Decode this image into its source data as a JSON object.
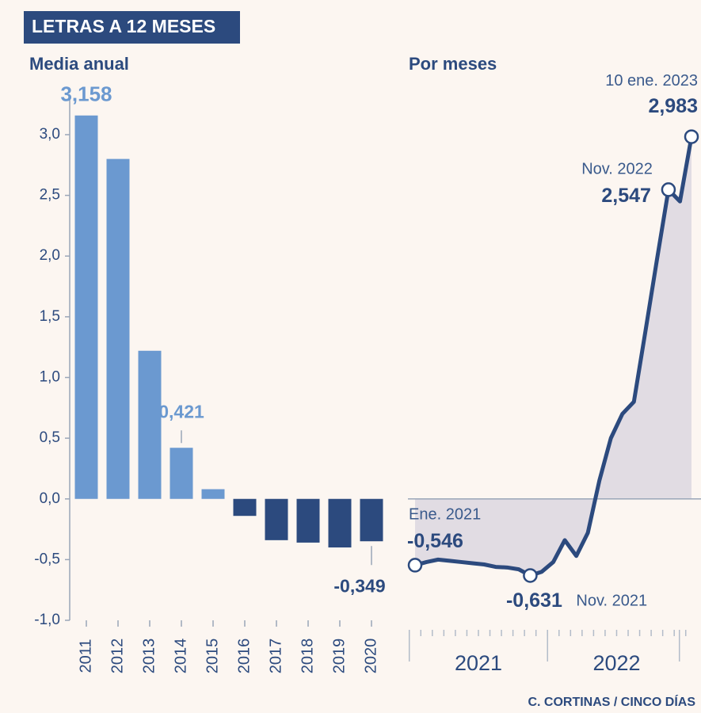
{
  "title": "LETRAS A 12 MESES",
  "source": "C. CORTINAS / CINCO DÍAS",
  "chart_data": [
    {
      "type": "bar",
      "subtitle": "Media anual",
      "categories": [
        "2011",
        "2012",
        "2013",
        "2014",
        "2015",
        "2016",
        "2017",
        "2018",
        "2019",
        "2020"
      ],
      "values": [
        3.158,
        2.8,
        1.22,
        0.421,
        0.08,
        -0.14,
        -0.34,
        -0.36,
        -0.4,
        -0.349
      ],
      "value_labels": [
        "3,158",
        null,
        null,
        "0,421",
        null,
        null,
        null,
        null,
        null,
        "-0,349"
      ],
      "color": "#6b99d0",
      "negative_color": "#2c4a7e",
      "ylim": [
        -1,
        3.3
      ],
      "yticks": [
        {
          "value": -1,
          "label": "-1,0"
        },
        {
          "value": -0.5,
          "label": "-0,5"
        },
        {
          "value": 0,
          "label": "0,0"
        },
        {
          "value": 0.5,
          "label": "0,5"
        },
        {
          "value": 1,
          "label": "1,0"
        },
        {
          "value": 1.5,
          "label": "1,5"
        },
        {
          "value": 2,
          "label": "2,0"
        },
        {
          "value": 2.5,
          "label": "2,5"
        },
        {
          "value": 3,
          "label": "3,0"
        }
      ]
    },
    {
      "type": "line",
      "subtitle": "Por meses",
      "categories": [
        null,
        null,
        null,
        null,
        null,
        null,
        null,
        null,
        null,
        null,
        null,
        null,
        null,
        null,
        null,
        null,
        null,
        null,
        null,
        null,
        null,
        null,
        null,
        null,
        null
      ],
      "values": [
        -0.546,
        -0.52,
        -0.5,
        -0.51,
        -0.52,
        -0.53,
        -0.54,
        -0.56,
        -0.565,
        -0.58,
        -0.631,
        -0.6,
        -0.52,
        -0.34,
        -0.47,
        -0.28,
        0.15,
        0.5,
        0.7,
        0.8,
        1.38,
        1.97,
        2.547,
        2.45,
        2.983
      ],
      "value_labels": [
        "-0,546",
        null,
        null,
        null,
        null,
        null,
        null,
        null,
        null,
        null,
        "-0,631",
        null,
        null,
        null,
        null,
        null,
        null,
        null,
        null,
        null,
        null,
        null,
        "2,547",
        null,
        "2,983"
      ],
      "point_names": [
        "Ene. 2021",
        null,
        null,
        null,
        null,
        null,
        null,
        null,
        null,
        null,
        "Nov. 2021",
        null,
        null,
        null,
        null,
        null,
        null,
        null,
        null,
        null,
        null,
        null,
        "Nov. 2022",
        null,
        "10 ene. 2023"
      ],
      "periods": [
        {
          "label": "2021",
          "count": 12
        },
        {
          "label": "2022",
          "count": 12
        }
      ],
      "color": "#2c4a7e",
      "area_color": "#d9d6e0",
      "ylim": [
        -1,
        3.3
      ],
      "zero_line": true
    }
  ]
}
